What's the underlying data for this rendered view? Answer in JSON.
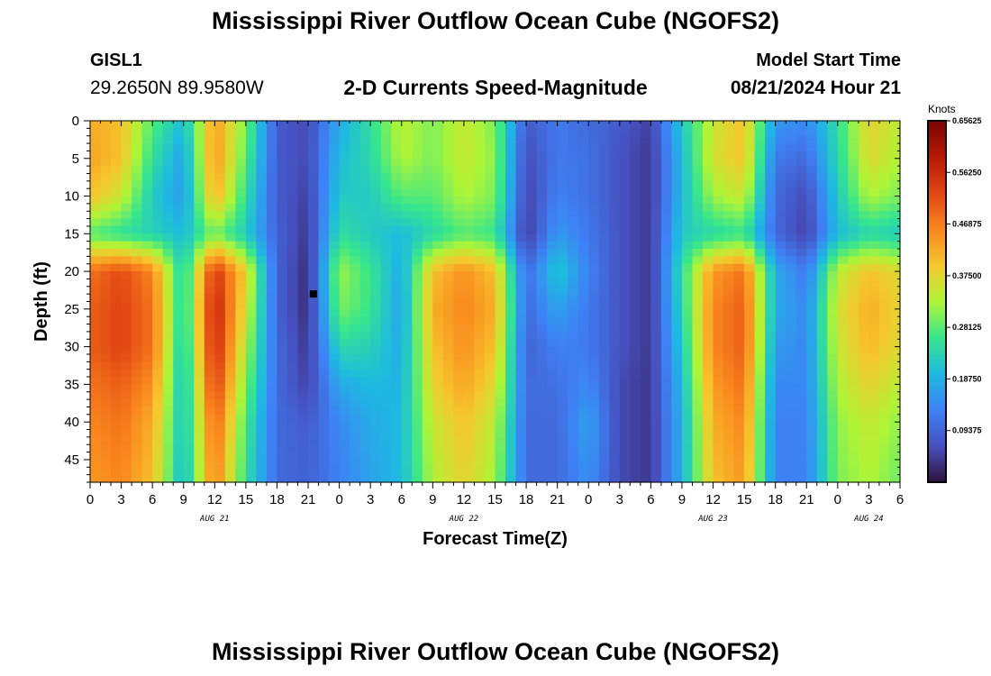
{
  "header": {
    "title": "Mississippi River Outflow Ocean Cube (NGOFS2)",
    "station": "GISL1",
    "coords": "29.2650N  89.9580W",
    "subtitle": "2-D Currents Speed-Magnitude",
    "model_label": "Model Start Time",
    "model_time": "08/21/2024 Hour 21"
  },
  "footer": {
    "title": "Mississippi River Outflow Ocean Cube (NGOFS2)"
  },
  "chart_data": {
    "type": "heatmap",
    "xlabel": "Forecast Time(Z)",
    "ylabel": "Depth (ft)",
    "x_range_hours": [
      0,
      78
    ],
    "x_ticks": [
      "0",
      "3",
      "6",
      "9",
      "12",
      "15",
      "18",
      "21",
      "0",
      "3",
      "6",
      "9",
      "12",
      "15",
      "18",
      "21",
      "0",
      "3",
      "6",
      "9",
      "12",
      "15",
      "18",
      "21",
      "0",
      "3",
      "6"
    ],
    "day_labels": [
      {
        "hour": 12,
        "text": "AUG 21"
      },
      {
        "hour": 36,
        "text": "AUG 22"
      },
      {
        "hour": 60,
        "text": "AUG 23"
      },
      {
        "hour": 75,
        "text": "AUG 24"
      }
    ],
    "ylim": [
      0,
      48
    ],
    "y_ticks": [
      "0",
      "5",
      "10",
      "15",
      "20",
      "25",
      "30",
      "35",
      "40",
      "45"
    ],
    "colorbar": {
      "title": "Knots",
      "min": 0,
      "max": 0.65625,
      "ticks": [
        "0.65625",
        "0.56250",
        "0.46875",
        "0.37500",
        "0.28125",
        "0.18750",
        "0.09375"
      ]
    },
    "marker": {
      "hour": 21.5,
      "depth": 23
    },
    "columns_hours": [
      0,
      3,
      6,
      9,
      12,
      15,
      18,
      21,
      24,
      27,
      30,
      33,
      36,
      39,
      42,
      45,
      48,
      51,
      54,
      57,
      60,
      63,
      66,
      69,
      72,
      75,
      78
    ],
    "profile_depths_ft": [
      0,
      5,
      10,
      15,
      20,
      25,
      30,
      35,
      40,
      48
    ],
    "speed_knots": [
      [
        0.42,
        0.43,
        0.4,
        0.28,
        0.48,
        0.5,
        0.5,
        0.48,
        0.46,
        0.44
      ],
      [
        0.4,
        0.4,
        0.35,
        0.25,
        0.52,
        0.53,
        0.53,
        0.5,
        0.48,
        0.46
      ],
      [
        0.28,
        0.25,
        0.22,
        0.23,
        0.46,
        0.48,
        0.48,
        0.45,
        0.42,
        0.4
      ],
      [
        0.2,
        0.17,
        0.16,
        0.2,
        0.22,
        0.22,
        0.21,
        0.2,
        0.2,
        0.19
      ],
      [
        0.44,
        0.45,
        0.42,
        0.3,
        0.55,
        0.58,
        0.57,
        0.54,
        0.5,
        0.47
      ],
      [
        0.3,
        0.28,
        0.25,
        0.22,
        0.38,
        0.36,
        0.33,
        0.3,
        0.27,
        0.25
      ],
      [
        0.08,
        0.08,
        0.08,
        0.09,
        0.09,
        0.09,
        0.1,
        0.1,
        0.1,
        0.1
      ],
      [
        0.06,
        0.06,
        0.05,
        0.04,
        0.03,
        0.03,
        0.04,
        0.05,
        0.08,
        0.09
      ],
      [
        0.18,
        0.2,
        0.22,
        0.25,
        0.32,
        0.3,
        0.24,
        0.18,
        0.14,
        0.13
      ],
      [
        0.25,
        0.24,
        0.22,
        0.22,
        0.26,
        0.26,
        0.23,
        0.2,
        0.18,
        0.17
      ],
      [
        0.34,
        0.33,
        0.28,
        0.2,
        0.18,
        0.17,
        0.18,
        0.19,
        0.2,
        0.2
      ],
      [
        0.3,
        0.3,
        0.28,
        0.24,
        0.4,
        0.42,
        0.4,
        0.38,
        0.35,
        0.33
      ],
      [
        0.35,
        0.35,
        0.33,
        0.28,
        0.45,
        0.46,
        0.45,
        0.43,
        0.4,
        0.38
      ],
      [
        0.3,
        0.31,
        0.3,
        0.26,
        0.4,
        0.42,
        0.4,
        0.37,
        0.34,
        0.32
      ],
      [
        0.08,
        0.06,
        0.05,
        0.04,
        0.1,
        0.1,
        0.09,
        0.1,
        0.1,
        0.1
      ],
      [
        0.12,
        0.12,
        0.13,
        0.16,
        0.22,
        0.17,
        0.13,
        0.11,
        0.1,
        0.1
      ],
      [
        0.1,
        0.11,
        0.11,
        0.12,
        0.13,
        0.12,
        0.12,
        0.14,
        0.17,
        0.15
      ],
      [
        0.08,
        0.07,
        0.07,
        0.07,
        0.07,
        0.07,
        0.07,
        0.06,
        0.06,
        0.06
      ],
      [
        0.05,
        0.04,
        0.04,
        0.04,
        0.04,
        0.04,
        0.04,
        0.04,
        0.04,
        0.04
      ],
      [
        0.22,
        0.2,
        0.2,
        0.22,
        0.25,
        0.24,
        0.22,
        0.2,
        0.19,
        0.19
      ],
      [
        0.35,
        0.36,
        0.32,
        0.24,
        0.44,
        0.46,
        0.46,
        0.44,
        0.42,
        0.4
      ],
      [
        0.4,
        0.4,
        0.35,
        0.26,
        0.48,
        0.5,
        0.5,
        0.48,
        0.46,
        0.44
      ],
      [
        0.16,
        0.12,
        0.1,
        0.1,
        0.18,
        0.18,
        0.16,
        0.14,
        0.13,
        0.13
      ],
      [
        0.14,
        0.1,
        0.06,
        0.05,
        0.12,
        0.14,
        0.14,
        0.14,
        0.13,
        0.13
      ],
      [
        0.25,
        0.24,
        0.22,
        0.2,
        0.34,
        0.36,
        0.35,
        0.33,
        0.31,
        0.3
      ],
      [
        0.38,
        0.37,
        0.33,
        0.24,
        0.4,
        0.42,
        0.41,
        0.38,
        0.35,
        0.33
      ],
      [
        0.34,
        0.33,
        0.3,
        0.22,
        0.37,
        0.38,
        0.37,
        0.34,
        0.31,
        0.29
      ]
    ]
  }
}
